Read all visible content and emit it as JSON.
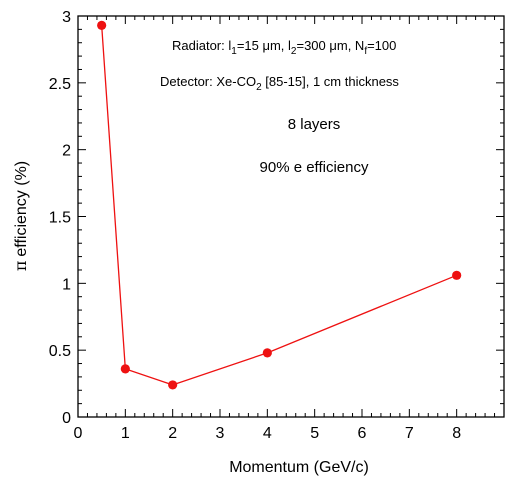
{
  "chart_data": {
    "type": "line",
    "title": "",
    "xlabel": "Momentum (GeV/c)",
    "ylabel": "efficiency (%)",
    "ylabel_symbol": "π",
    "xlim": [
      0,
      9
    ],
    "ylim": [
      0,
      3
    ],
    "xticks": [
      0,
      1,
      2,
      3,
      4,
      5,
      6,
      7,
      8
    ],
    "yticks": [
      0,
      0.5,
      1,
      1.5,
      2,
      2.5,
      3
    ],
    "ytick_labels": [
      "0",
      "0.5",
      "1",
      "1.5",
      "2",
      "2.5",
      "3"
    ],
    "grid": false,
    "series": [
      {
        "color": "#ee1111",
        "marker": "circle",
        "x": [
          0.5,
          1,
          2,
          4,
          8
        ],
        "y": [
          2.93,
          0.36,
          0.24,
          0.48,
          1.06
        ]
      }
    ],
    "annotations": {
      "radiator": {
        "prefix": "Radiator: l",
        "sub1": "1",
        "part1": "=15 μm, l",
        "sub2": "2",
        "part2": "=300 μm, N",
        "sub3": "f",
        "part3": "=100"
      },
      "detector": {
        "prefix": "Detector: Xe-CO",
        "sub": "2",
        "suffix": " [85-15], 1 cm thickness"
      },
      "layers": "8 layers",
      "e_efficiency": "90% e efficiency"
    }
  }
}
